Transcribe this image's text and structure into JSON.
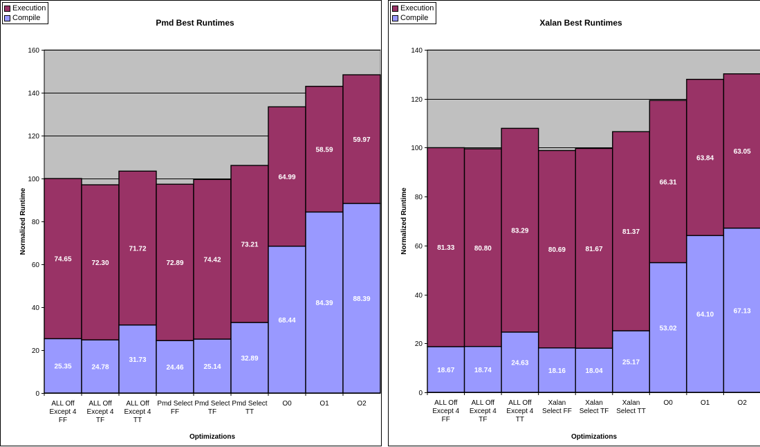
{
  "legend": {
    "execution": "Execution",
    "compile": "Compile"
  },
  "colors": {
    "execution": "#993366",
    "compile": "#9999ff",
    "plot_bg": "#c0c0c0",
    "grid": "#000000"
  },
  "chart_data": [
    {
      "type": "bar",
      "stacked": true,
      "title": "Pmd Best Runtimes",
      "xlabel": "Optimizations",
      "ylabel": "Normalized Runtime",
      "ylim": [
        0,
        160
      ],
      "yticks": [
        0,
        20,
        40,
        60,
        80,
        100,
        120,
        140,
        160
      ],
      "grid": true,
      "legend_position": "top-left",
      "categories": [
        [
          "ALL Off",
          "Except 4",
          "FF"
        ],
        [
          "ALL Off",
          "Except 4",
          "TF"
        ],
        [
          "ALL Off",
          "Except 4",
          "TT"
        ],
        [
          "Pmd Select",
          "FF"
        ],
        [
          "Pmd Select",
          "TF"
        ],
        [
          "Pmd Select",
          "TT"
        ],
        [
          "O0"
        ],
        [
          "O1"
        ],
        [
          "O2"
        ]
      ],
      "series": [
        {
          "name": "Compile",
          "values": [
            25.35,
            24.78,
            31.73,
            24.46,
            25.14,
            32.89,
            68.44,
            84.39,
            88.39
          ],
          "labels": [
            "25.35",
            "24.78",
            "31.73",
            "24.46",
            "25.14",
            "32.89",
            "68.44",
            "84.39",
            "88.39"
          ]
        },
        {
          "name": "Execution",
          "values": [
            74.65,
            72.3,
            71.72,
            72.89,
            74.42,
            73.21,
            64.99,
            58.59,
            59.97
          ],
          "labels": [
            "74.65",
            "72.30",
            "71.72",
            "72.89",
            "74.42",
            "73.21",
            "64.99",
            "58.59",
            "59.97"
          ]
        }
      ]
    },
    {
      "type": "bar",
      "stacked": true,
      "title": "Xalan Best Runtimes",
      "xlabel": "Optimizations",
      "ylabel": "Normalized Runtime",
      "ylim": [
        0,
        140
      ],
      "yticks": [
        0,
        20,
        40,
        60,
        80,
        100,
        120,
        140
      ],
      "grid": true,
      "legend_position": "top-left",
      "categories": [
        [
          "ALL Off",
          "Except 4",
          "FF"
        ],
        [
          "ALL Off",
          "Except 4",
          "TF"
        ],
        [
          "ALL Off",
          "Except 4",
          "TT"
        ],
        [
          "Xalan",
          "Select FF"
        ],
        [
          "Xalan",
          "Select TF"
        ],
        [
          "Xalan",
          "Select TT"
        ],
        [
          "O0"
        ],
        [
          "O1"
        ],
        [
          "O2"
        ]
      ],
      "series": [
        {
          "name": "Compile",
          "values": [
            18.67,
            18.74,
            24.63,
            18.16,
            18.04,
            25.17,
            53.02,
            64.1,
            67.13
          ],
          "labels": [
            "18.67",
            "18.74",
            "24.63",
            "18.16",
            "18.04",
            "25.17",
            "53.02",
            "64.10",
            "67.13"
          ]
        },
        {
          "name": "Execution",
          "values": [
            81.33,
            80.8,
            83.29,
            80.69,
            81.67,
            81.37,
            66.31,
            63.84,
            63.05
          ],
          "labels": [
            "81.33",
            "80.80",
            "83.29",
            "80.69",
            "81.67",
            "81.37",
            "66.31",
            "63.84",
            "63.05"
          ]
        }
      ]
    }
  ]
}
